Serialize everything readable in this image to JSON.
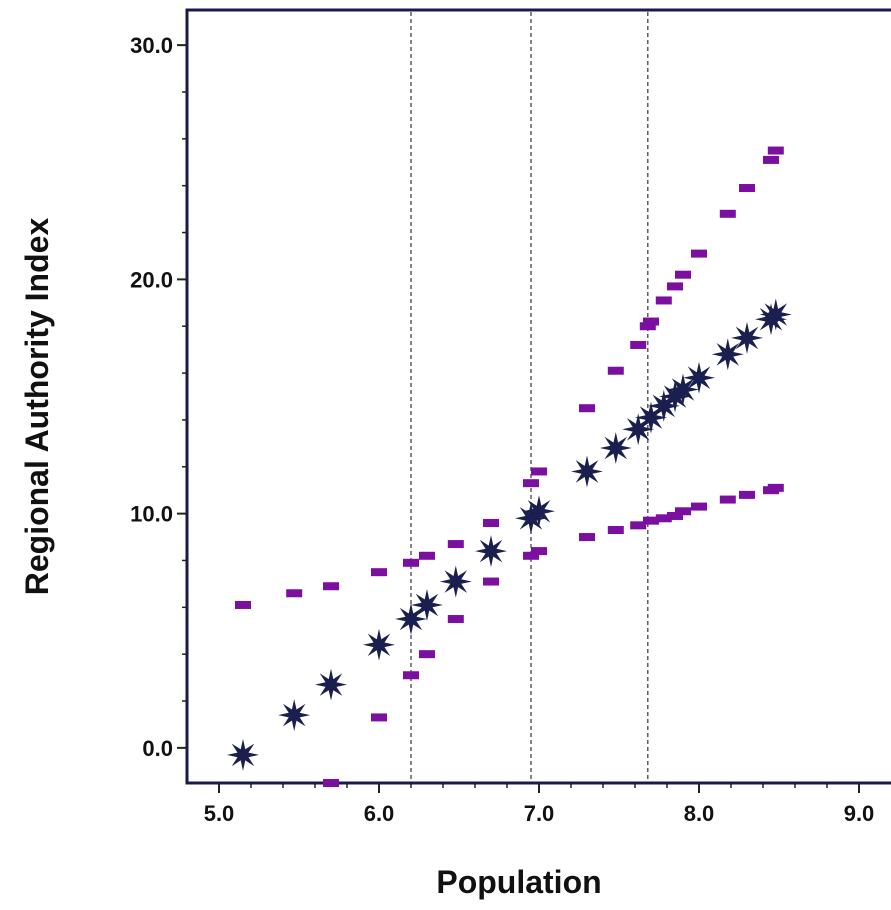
{
  "chart_data": {
    "type": "scatter",
    "title": "",
    "xlabel": "Population",
    "ylabel": "Regional Authority Index",
    "xlim": [
      4.8,
      9.2
    ],
    "ylim": [
      -1.5,
      31.5
    ],
    "x_ticks": [
      "5.0",
      "6.0",
      "7.0",
      "8.0",
      "9.0"
    ],
    "y_ticks": [
      "0.0",
      "10.0",
      "20.0",
      "30.0"
    ],
    "grid": false,
    "legend": "none",
    "reference_lines_x": [
      6.2,
      6.95,
      7.68
    ],
    "series": [
      {
        "marker": "star",
        "color": "#1b1f4f",
        "x": [
          5.15,
          5.47,
          5.7,
          6.0,
          6.2,
          6.3,
          6.48,
          6.7,
          6.95,
          7.0,
          7.3,
          7.48,
          7.62,
          7.7,
          7.78,
          7.85,
          7.9,
          8.0,
          8.18,
          8.3,
          8.45,
          8.48
        ],
        "y": [
          -0.3,
          1.4,
          2.7,
          4.4,
          5.5,
          6.1,
          7.1,
          8.4,
          9.8,
          10.1,
          11.8,
          12.8,
          13.6,
          14.1,
          14.6,
          15.0,
          15.3,
          15.8,
          16.8,
          17.5,
          18.3,
          18.5
        ]
      },
      {
        "marker": "dash",
        "color": "#7b0fa0",
        "x": [
          5.15,
          5.47,
          5.7,
          6.0,
          6.2,
          6.3,
          6.48,
          6.7,
          6.95,
          7.0,
          7.3,
          7.48,
          7.62,
          7.68,
          7.7,
          7.78,
          7.85,
          7.9,
          8.0,
          8.18,
          8.3,
          8.45,
          8.48
        ],
        "y": [
          6.1,
          6.6,
          6.9,
          7.5,
          7.9,
          8.2,
          8.7,
          9.6,
          11.3,
          11.8,
          14.5,
          16.1,
          17.2,
          18.0,
          18.2,
          19.1,
          19.7,
          20.2,
          21.1,
          22.8,
          23.9,
          25.1,
          25.5
        ]
      },
      {
        "marker": "dash",
        "color": "#7b0fa0",
        "x": [
          5.7,
          6.0,
          6.2,
          6.3,
          6.48,
          6.7,
          6.95,
          7.0,
          7.3,
          7.48,
          7.62,
          7.7,
          7.78,
          7.85,
          7.9,
          8.0,
          8.18,
          8.3,
          8.45,
          8.48
        ],
        "y": [
          -1.5,
          1.3,
          3.1,
          4.0,
          5.5,
          7.1,
          8.2,
          8.4,
          9.0,
          9.3,
          9.5,
          9.7,
          9.8,
          9.9,
          10.1,
          10.3,
          10.6,
          10.8,
          11.0,
          11.1
        ]
      }
    ]
  }
}
